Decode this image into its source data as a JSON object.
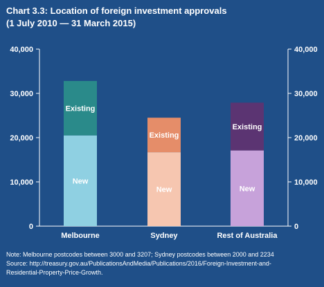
{
  "title": "Chart 3.3: Location of foreign investment approvals",
  "subtitle": "(1 July 2010 — 31 March 2015)",
  "note": "Note: Melbourne postcodes between 3000 and 3207; Sydney postcodes between 2000 and 2234",
  "source": "Source: http://treasury.gov.au/PublicationsAndMedia/Publications/2016/Foreign-Investment-and-",
  "source_cont": "Residential-Property-Price-Growth.",
  "colors": {
    "background": "#1f4f88",
    "melbourne_new": "#8fd0e2",
    "melbourne_existing": "#2a8a8a",
    "sydney_new": "#f6c6b0",
    "sydney_existing": "#e58d69",
    "rest_new": "#c7a2da",
    "rest_existing": "#5b3472"
  },
  "chart_data": {
    "type": "bar",
    "stacked": true,
    "categories": [
      "Melbourne",
      "Sydney",
      "Rest of Australia"
    ],
    "series": [
      {
        "name": "New",
        "values": [
          20500,
          16700,
          17100
        ]
      },
      {
        "name": "Existing",
        "values": [
          12300,
          7800,
          10800
        ]
      }
    ],
    "ylim": [
      0,
      40000
    ],
    "yticks": [
      "0",
      "10,000",
      "20,000",
      "30,000",
      "40,000"
    ],
    "ytick_values": [
      0,
      10000,
      20000,
      30000,
      40000
    ],
    "right_axis": true,
    "grid": false,
    "segment_labels": "inside"
  }
}
